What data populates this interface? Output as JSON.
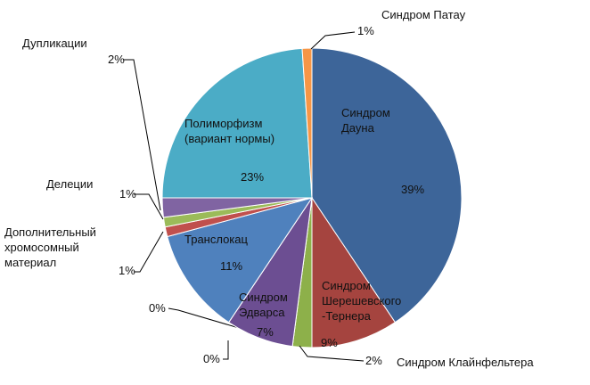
{
  "chart_data": {
    "type": "pie",
    "categories": [
      "Синдром Дауна",
      "Синдром Шерешевского-Тернера",
      "Синдром Клайнфельтера",
      null,
      "Синдром Эдварса",
      null,
      "Транслокац",
      "Дополнительный хромосомный материал",
      "Делеции",
      "Дупликации",
      "Полиморфизм (вариант нормы)",
      "Синдром Патау"
    ],
    "values": [
      39,
      9,
      2,
      0,
      7,
      0,
      11,
      1,
      1,
      2,
      23,
      1
    ],
    "value_labels": [
      "39%",
      "9%",
      "2%",
      "0%",
      "7%",
      "0%",
      "11%",
      "1%",
      "1%",
      "2%",
      "23%",
      "1%"
    ],
    "colors": [
      "#3d6599",
      "#a5443f",
      "#8db04a",
      "#4bacc6",
      "#6c4e92",
      "#f79646",
      "#4f81bd",
      "#c0504d",
      "#9bbb59",
      "#8064a2",
      "#4bacc6",
      "#f79646"
    ]
  }
}
